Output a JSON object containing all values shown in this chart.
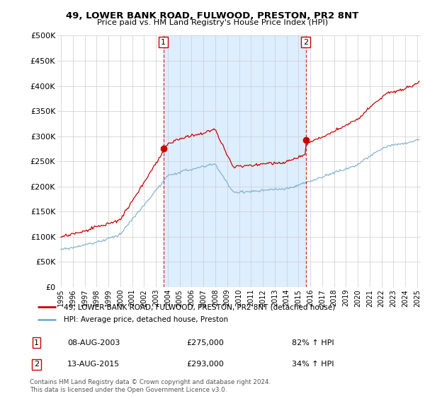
{
  "title_line1": "49, LOWER BANK ROAD, FULWOOD, PRESTON, PR2 8NT",
  "title_line2": "Price paid vs. HM Land Registry's House Price Index (HPI)",
  "sale1_date": "08-AUG-2003",
  "sale1_price": 275000,
  "sale2_date": "13-AUG-2015",
  "sale2_price": 293000,
  "sale1_pct": "82% ↑ HPI",
  "sale2_pct": "34% ↑ HPI",
  "legend_line1": "49, LOWER BANK ROAD, FULWOOD, PRESTON, PR2 8NT (detached house)",
  "legend_line2": "HPI: Average price, detached house, Preston",
  "footer": "Contains HM Land Registry data © Crown copyright and database right 2024.\nThis data is licensed under the Open Government Licence v3.0.",
  "ylim": [
    0,
    500000
  ],
  "yticks": [
    0,
    50000,
    100000,
    150000,
    200000,
    250000,
    300000,
    350000,
    400000,
    450000,
    500000
  ],
  "red_color": "#cc0000",
  "blue_color": "#7aaccc",
  "shade_color": "#ddeeff",
  "marker1_x": 2003.62,
  "marker1_y": 275000,
  "marker2_x": 2015.62,
  "marker2_y": 293000,
  "vline1_x": 2003.62,
  "vline2_x": 2015.62,
  "xmin": 1995.0,
  "xmax": 2025.3
}
